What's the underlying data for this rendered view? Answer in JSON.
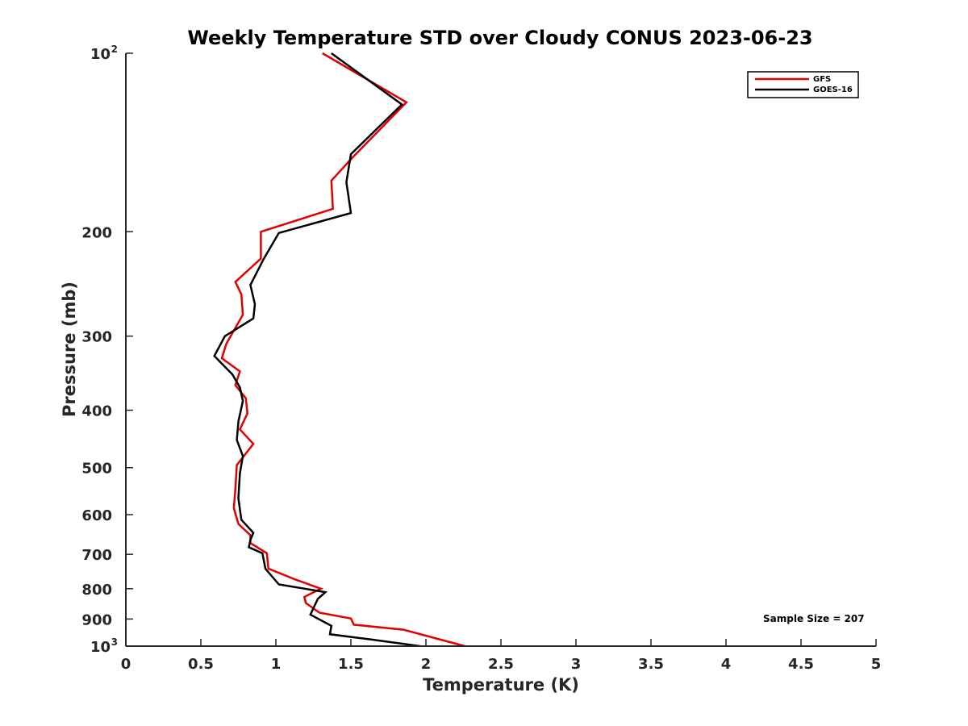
{
  "chart_data": {
    "type": "line",
    "title": "Weekly Temperature STD over Cloudy CONUS 2023-06-23",
    "xlabel": "Temperature (K)",
    "ylabel": "Pressure (mb)",
    "xlim": [
      0,
      5
    ],
    "ylim": [
      100,
      1000
    ],
    "y_scale": "log",
    "y_reversed": true,
    "x_ticks": [
      {
        "value": 0,
        "label": "0"
      },
      {
        "value": 0.5,
        "label": "0.5"
      },
      {
        "value": 1,
        "label": "1"
      },
      {
        "value": 1.5,
        "label": "1.5"
      },
      {
        "value": 2,
        "label": "2"
      },
      {
        "value": 2.5,
        "label": "2.5"
      },
      {
        "value": 3,
        "label": "3"
      },
      {
        "value": 3.5,
        "label": "3.5"
      },
      {
        "value": 4,
        "label": "4"
      },
      {
        "value": 4.5,
        "label": "4.5"
      },
      {
        "value": 5,
        "label": "5"
      }
    ],
    "y_ticks": [
      {
        "value": 100,
        "label": "10",
        "sup": "2"
      },
      {
        "value": 200,
        "label": "200"
      },
      {
        "value": 300,
        "label": "300"
      },
      {
        "value": 400,
        "label": "400"
      },
      {
        "value": 500,
        "label": "500"
      },
      {
        "value": 600,
        "label": "600"
      },
      {
        "value": 700,
        "label": "700"
      },
      {
        "value": 800,
        "label": "800"
      },
      {
        "value": 900,
        "label": "900"
      },
      {
        "value": 1000,
        "label": "10",
        "sup": "3"
      }
    ],
    "legend_position": "top-right",
    "annotation": "Sample Size = 207",
    "series": [
      {
        "name": "GFS",
        "color": "#e00000",
        "points": [
          [
            1.31,
            100
          ],
          [
            1.87,
            121
          ],
          [
            1.51,
            150
          ],
          [
            1.37,
            164
          ],
          [
            1.38,
            183
          ],
          [
            0.9,
            200
          ],
          [
            0.9,
            222
          ],
          [
            0.73,
            243
          ],
          [
            0.77,
            255
          ],
          [
            0.78,
            276
          ],
          [
            0.67,
            309
          ],
          [
            0.64,
            327
          ],
          [
            0.76,
            344
          ],
          [
            0.73,
            363
          ],
          [
            0.8,
            382
          ],
          [
            0.81,
            405
          ],
          [
            0.76,
            431
          ],
          [
            0.85,
            456
          ],
          [
            0.74,
            495
          ],
          [
            0.73,
            543
          ],
          [
            0.72,
            585
          ],
          [
            0.75,
            622
          ],
          [
            0.83,
            650
          ],
          [
            0.83,
            670
          ],
          [
            0.94,
            697
          ],
          [
            0.95,
            740
          ],
          [
            1.13,
            772
          ],
          [
            1.3,
            800
          ],
          [
            1.19,
            826
          ],
          [
            1.2,
            846
          ],
          [
            1.29,
            878
          ],
          [
            1.5,
            898
          ],
          [
            1.52,
            920
          ],
          [
            1.85,
            938
          ],
          [
            2.26,
            1000
          ]
        ]
      },
      {
        "name": "GOES-16",
        "color": "#000000",
        "points": [
          [
            1.37,
            100
          ],
          [
            1.84,
            122
          ],
          [
            1.5,
            148
          ],
          [
            1.47,
            165
          ],
          [
            1.5,
            186
          ],
          [
            1.02,
            201
          ],
          [
            0.92,
            222
          ],
          [
            0.83,
            246
          ],
          [
            0.86,
            265
          ],
          [
            0.85,
            280
          ],
          [
            0.66,
            300
          ],
          [
            0.59,
            324
          ],
          [
            0.71,
            348
          ],
          [
            0.76,
            366
          ],
          [
            0.78,
            386
          ],
          [
            0.75,
            418
          ],
          [
            0.74,
            449
          ],
          [
            0.78,
            478
          ],
          [
            0.76,
            511
          ],
          [
            0.75,
            563
          ],
          [
            0.77,
            612
          ],
          [
            0.85,
            644
          ],
          [
            0.83,
            662
          ],
          [
            0.82,
            681
          ],
          [
            0.91,
            697
          ],
          [
            0.93,
            740
          ],
          [
            1.02,
            787
          ],
          [
            1.33,
            811
          ],
          [
            1.28,
            832
          ],
          [
            1.26,
            852
          ],
          [
            1.23,
            885
          ],
          [
            1.37,
            924
          ],
          [
            1.36,
            955
          ],
          [
            1.64,
            975
          ],
          [
            1.96,
            1000
          ]
        ]
      }
    ]
  }
}
